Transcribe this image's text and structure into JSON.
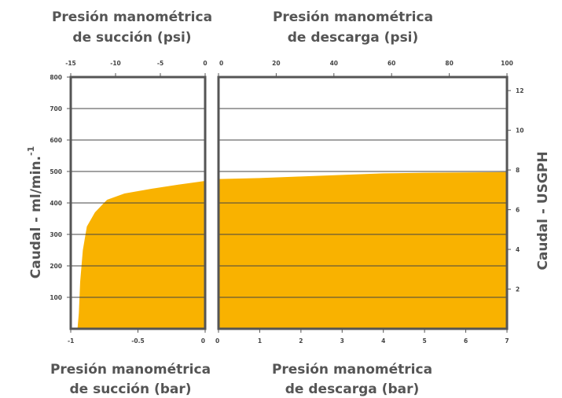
{
  "chart_data": {
    "type": "area",
    "colors": {
      "fill": "#F9B200",
      "frame": "#555555",
      "grid": "#444444"
    },
    "grid": true,
    "titles": {
      "top_left": [
        "Presión manométrica",
        "de succión (psi)"
      ],
      "top_right": [
        "Presión manométrica",
        "de descarga (psi)"
      ],
      "bottom_left": [
        "Presión manométrica",
        "de succión (bar)"
      ],
      "bottom_right": [
        "Presión manométrica",
        "de descarga (bar)"
      ]
    },
    "ylabel_left": "Caudal - ml/min.",
    "ylabel_left_sup": "-1",
    "ylabel_right": "Caudal - USGPH",
    "y_left": {
      "range": [
        0,
        800
      ],
      "ticks": [
        "100",
        "200",
        "300",
        "400",
        "500",
        "600",
        "700",
        "800"
      ]
    },
    "y_right": {
      "range": [
        0,
        12.68
      ],
      "ticks": [
        "2",
        "4",
        "6",
        "8",
        "10",
        "12"
      ]
    },
    "suction": {
      "x_bar": {
        "range": [
          -1,
          0
        ],
        "ticks": [
          "-1",
          "-0.5",
          "0"
        ]
      },
      "x_psi": {
        "range": [
          -15,
          0
        ],
        "ticks": [
          "-15",
          "-10",
          "-5",
          "0"
        ]
      },
      "series": {
        "x": [
          -0.95,
          -0.94,
          -0.93,
          -0.91,
          -0.88,
          -0.82,
          -0.73,
          -0.6,
          -0.4,
          -0.2,
          0
        ],
        "y": [
          0,
          50,
          150,
          250,
          325,
          370,
          410,
          430,
          445,
          458,
          470
        ]
      }
    },
    "discharge": {
      "x_bar": {
        "range": [
          0,
          7
        ],
        "ticks": [
          "0",
          "1",
          "2",
          "3",
          "4",
          "5",
          "6",
          "7"
        ]
      },
      "x_psi": {
        "range": [
          0,
          100
        ],
        "ticks": [
          "0",
          "20",
          "40",
          "60",
          "80",
          "100"
        ]
      },
      "series": {
        "x": [
          0,
          1,
          2,
          3,
          4,
          5,
          6,
          7
        ],
        "y": [
          476,
          479,
          484,
          489,
          494,
          496,
          497,
          498
        ]
      }
    }
  }
}
